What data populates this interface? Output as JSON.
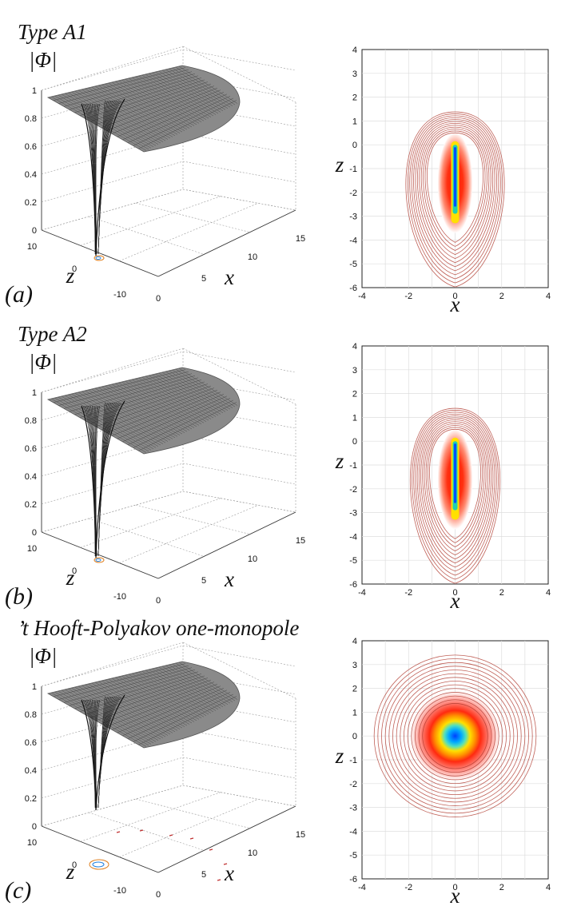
{
  "figure": {
    "rows": [
      {
        "title": "Type A1",
        "panel_label": "(a)",
        "surface_label": "|Φ|",
        "contour_style": "elongated",
        "surface": {
          "z_ticks": [
            "0",
            "0.2",
            "0.4",
            "0.6",
            "0.8",
            "1"
          ],
          "zaxis_ticks": [
            "10",
            "0",
            "-10"
          ],
          "x_ticks": [
            "0",
            "5",
            "10",
            "15"
          ],
          "zlabel": "z",
          "xlabel": "x"
        },
        "contour": {
          "y_ticks": [
            "4",
            "3",
            "2",
            "1",
            "0",
            "-1",
            "-2",
            "-3",
            "-4",
            "-5",
            "-6"
          ],
          "x_ticks": [
            "-4",
            "-2",
            "0",
            "2",
            "4"
          ],
          "ylabel": "z",
          "xlabel": "x"
        }
      },
      {
        "title": "Type A2",
        "panel_label": "(b)",
        "surface_label": "|Φ|",
        "contour_style": "elongated",
        "surface": {
          "z_ticks": [
            "0",
            "0.2",
            "0.4",
            "0.6",
            "0.8",
            "1"
          ],
          "zaxis_ticks": [
            "10",
            "0",
            "-10"
          ],
          "x_ticks": [
            "0",
            "5",
            "10",
            "15"
          ],
          "zlabel": "z",
          "xlabel": "x"
        },
        "contour": {
          "y_ticks": [
            "4",
            "3",
            "2",
            "1",
            "0",
            "-1",
            "-2",
            "-3",
            "-4",
            "-5",
            "-6"
          ],
          "x_ticks": [
            "-4",
            "-2",
            "0",
            "2",
            "4"
          ],
          "ylabel": "z",
          "xlabel": "x"
        }
      },
      {
        "title": "’t Hooft-Polyakov one-monopole",
        "panel_label": "(c)",
        "surface_label": "|Φ|",
        "contour_style": "circular",
        "surface": {
          "z_ticks": [
            "0",
            "0.2",
            "0.4",
            "0.6",
            "0.8",
            "1"
          ],
          "zaxis_ticks": [
            "10",
            "0",
            "-10"
          ],
          "x_ticks": [
            "0",
            "5",
            "10",
            "15"
          ],
          "zlabel": "z",
          "xlabel": "x"
        },
        "contour": {
          "y_ticks": [
            "4",
            "3",
            "2",
            "1",
            "0",
            "-1",
            "-2",
            "-3",
            "-4",
            "-5",
            "-6"
          ],
          "x_ticks": [
            "-4",
            "-2",
            "0",
            "2",
            "4"
          ],
          "ylabel": "z",
          "xlabel": "x"
        }
      }
    ],
    "colors": {
      "contour_line": "#b03a2e",
      "core": "#0050ff",
      "mesh": "#444444"
    }
  }
}
